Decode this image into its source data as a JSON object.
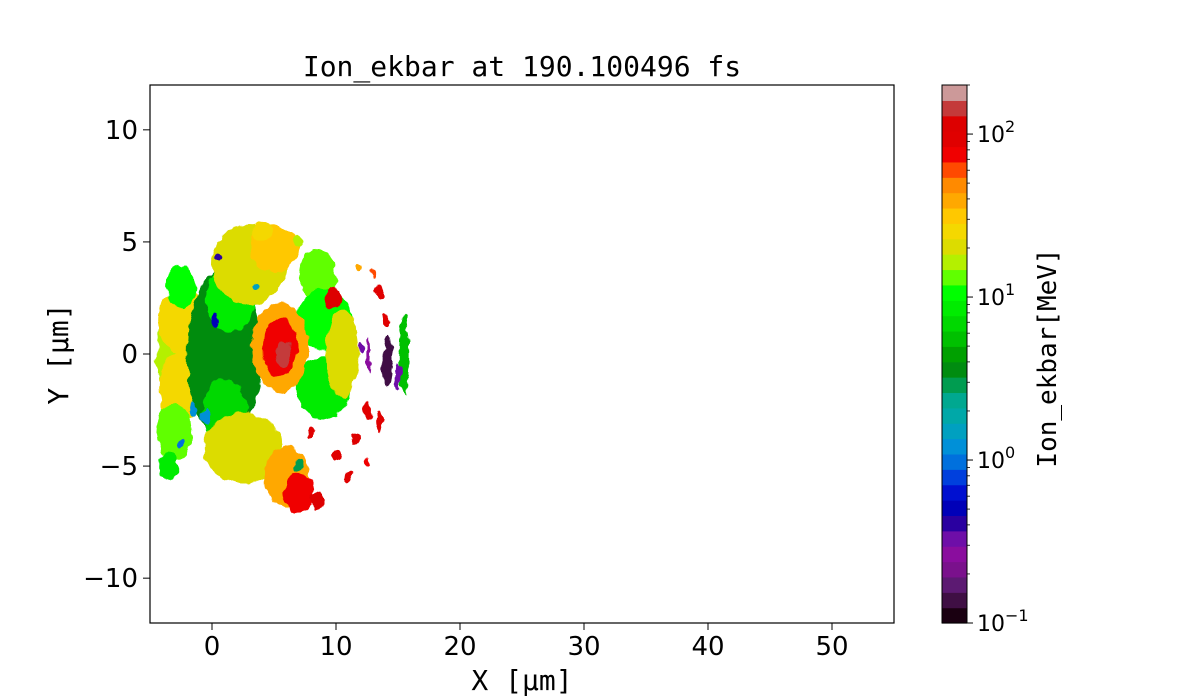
{
  "chart_data": {
    "type": "heatmap",
    "title": "Ion_ekbar at 190.100496 fs",
    "xlabel": "X  [μm]",
    "ylabel": "Y  [μm]",
    "xlim": [
      -5,
      55
    ],
    "ylim": [
      -12,
      12
    ],
    "x_ticks": [
      0,
      10,
      20,
      30,
      40,
      50
    ],
    "x_tick_labels": [
      "0",
      "10",
      "20",
      "30",
      "40",
      "50"
    ],
    "y_ticks": [
      -10,
      -5,
      0,
      5,
      10
    ],
    "y_tick_labels": [
      "−10",
      "−5",
      "0",
      "5",
      "10"
    ],
    "grid": false,
    "colorbar": {
      "label": "Ion_ekbar[MeV]",
      "scale": "log",
      "range": [
        0.1,
        200
      ],
      "tick_labels": [
        {
          "value": 0.1,
          "base": "10",
          "exp": "−1"
        },
        {
          "value": 1,
          "base": "10",
          "exp": "0"
        },
        {
          "value": 10,
          "base": "10",
          "exp": "1"
        },
        {
          "value": 100,
          "base": "10",
          "exp": "2"
        }
      ],
      "colors": [
        "#1a0011",
        "#3f0f44",
        "#5c1a72",
        "#7a118c",
        "#8a0d9e",
        "#6e0ea8",
        "#2a00a0",
        "#0000b8",
        "#0010d0",
        "#0040dd",
        "#0070dd",
        "#0090d8",
        "#00a0c0",
        "#00a8a8",
        "#00a890",
        "#009c50",
        "#008c10",
        "#00a000",
        "#00c000",
        "#00d800",
        "#00ec00",
        "#00ff00",
        "#60ff00",
        "#b4f000",
        "#dcdc00",
        "#f4d800",
        "#ffc800",
        "#ffa800",
        "#ff8a00",
        "#ff4a00",
        "#f00000",
        "#e00000",
        "#dd0000",
        "#c43a3a",
        "#cc9999"
      ]
    },
    "blobs": [
      {
        "x": -2.0,
        "y": 0.0,
        "rx": 2.5,
        "ry": 2.6,
        "value": 15
      },
      {
        "x": -2.5,
        "y": 1.5,
        "rx": 1.8,
        "ry": 1.5,
        "value": 28
      },
      {
        "x": -2.5,
        "y": -1.5,
        "rx": 1.8,
        "ry": 1.6,
        "value": 25
      },
      {
        "x": -3.0,
        "y": -3.5,
        "rx": 1.4,
        "ry": 1.3,
        "value": 12
      },
      {
        "x": -3.5,
        "y": -5.0,
        "rx": 0.8,
        "ry": 0.6,
        "value": 8
      },
      {
        "x": -2.5,
        "y": 3.0,
        "rx": 1.2,
        "ry": 1.0,
        "value": 10
      },
      {
        "x": 1.0,
        "y": 0.0,
        "rx": 3.0,
        "ry": 3.8,
        "value": 4
      },
      {
        "x": 1.5,
        "y": 2.5,
        "rx": 2.0,
        "ry": 1.5,
        "value": 8
      },
      {
        "x": 1.0,
        "y": -2.5,
        "rx": 1.8,
        "ry": 1.4,
        "value": 7
      },
      {
        "x": 3.0,
        "y": 4.0,
        "rx": 3.0,
        "ry": 1.8,
        "value": 20
      },
      {
        "x": 2.5,
        "y": -4.2,
        "rx": 3.2,
        "ry": 1.6,
        "value": 22
      },
      {
        "x": 5.0,
        "y": 4.7,
        "rx": 2.0,
        "ry": 1.0,
        "value": 30
      },
      {
        "x": 6.0,
        "y": -5.5,
        "rx": 1.8,
        "ry": 1.4,
        "value": 40
      },
      {
        "x": 7.0,
        "y": -6.2,
        "rx": 1.2,
        "ry": 0.9,
        "value": 80
      },
      {
        "x": 8.5,
        "y": 3.5,
        "rx": 1.5,
        "ry": 1.2,
        "value": 12
      },
      {
        "x": 9.0,
        "y": 1.5,
        "rx": 2.2,
        "ry": 1.4,
        "value": 10
      },
      {
        "x": 9.0,
        "y": -1.5,
        "rx": 2.2,
        "ry": 1.4,
        "value": 9
      },
      {
        "x": 5.5,
        "y": 0.3,
        "rx": 2.3,
        "ry": 2.0,
        "value": 40
      },
      {
        "x": 5.5,
        "y": 0.3,
        "rx": 1.4,
        "ry": 1.3,
        "value": 70
      },
      {
        "x": 5.8,
        "y": 0.0,
        "rx": 0.6,
        "ry": 0.6,
        "value": 130
      },
      {
        "x": 10.5,
        "y": 0.0,
        "rx": 1.3,
        "ry": 2.0,
        "value": 20
      },
      {
        "x": 9.8,
        "y": 2.5,
        "rx": 0.6,
        "ry": 0.5,
        "value": 120
      },
      {
        "x": 12.6,
        "y": 0.0,
        "rx": 0.15,
        "ry": 0.8,
        "value": 0.25
      },
      {
        "x": 14.2,
        "y": -0.3,
        "rx": 0.4,
        "ry": 1.2,
        "value": 0.15
      },
      {
        "x": 15.5,
        "y": 0.0,
        "rx": 0.4,
        "ry": 1.8,
        "value": 6
      },
      {
        "x": 12.5,
        "y": -2.5,
        "rx": 0.4,
        "ry": 0.4,
        "value": 100
      },
      {
        "x": 13.5,
        "y": -3.0,
        "rx": 0.3,
        "ry": 0.5,
        "value": 90
      },
      {
        "x": 11.5,
        "y": -3.8,
        "rx": 0.35,
        "ry": 0.25,
        "value": 110
      },
      {
        "x": 10.0,
        "y": -4.5,
        "rx": 0.35,
        "ry": 0.25,
        "value": 100
      },
      {
        "x": 11.0,
        "y": -5.5,
        "rx": 0.3,
        "ry": 0.25,
        "value": 90
      },
      {
        "x": 12.5,
        "y": -4.8,
        "rx": 0.25,
        "ry": 0.2,
        "value": 80
      },
      {
        "x": 8.5,
        "y": -6.5,
        "rx": 0.6,
        "ry": 0.4,
        "value": 110
      },
      {
        "x": 8.0,
        "y": -3.5,
        "rx": 0.3,
        "ry": 0.2,
        "value": 100
      },
      {
        "x": 7.0,
        "y": -5.0,
        "rx": 0.3,
        "ry": 0.25,
        "value": 3
      },
      {
        "x": 13.5,
        "y": 2.8,
        "rx": 0.3,
        "ry": 0.3,
        "value": 90
      },
      {
        "x": 14.0,
        "y": 1.5,
        "rx": 0.3,
        "ry": 0.3,
        "value": 100
      },
      {
        "x": 11.8,
        "y": 3.8,
        "rx": 0.25,
        "ry": 0.2,
        "value": 40
      },
      {
        "x": 13.0,
        "y": 3.6,
        "rx": 0.2,
        "ry": 0.2,
        "value": 60
      },
      {
        "x": 4.0,
        "y": 5.5,
        "rx": 0.8,
        "ry": 0.4,
        "value": 25
      },
      {
        "x": 7.0,
        "y": 5.0,
        "rx": 0.5,
        "ry": 0.3,
        "value": 15
      },
      {
        "x": -0.5,
        "y": -2.8,
        "rx": 0.4,
        "ry": 0.3,
        "value": 1.2
      },
      {
        "x": -1.5,
        "y": -2.5,
        "rx": 0.3,
        "ry": 0.3,
        "value": 1.2
      },
      {
        "x": -2.5,
        "y": -4.0,
        "rx": 0.3,
        "ry": 0.2,
        "value": 0.9
      },
      {
        "x": 0.3,
        "y": 1.5,
        "rx": 0.3,
        "ry": 0.3,
        "value": 0.5
      },
      {
        "x": 0.5,
        "y": 4.3,
        "rx": 0.25,
        "ry": 0.2,
        "value": 0.4
      },
      {
        "x": 3.5,
        "y": 3.0,
        "rx": 0.3,
        "ry": 0.2,
        "value": 1.5
      },
      {
        "x": 12.0,
        "y": 0.3,
        "rx": 0.2,
        "ry": 0.3,
        "value": 0.3
      },
      {
        "x": 15.0,
        "y": -1.0,
        "rx": 0.2,
        "ry": 0.6,
        "value": 0.3
      }
    ]
  }
}
